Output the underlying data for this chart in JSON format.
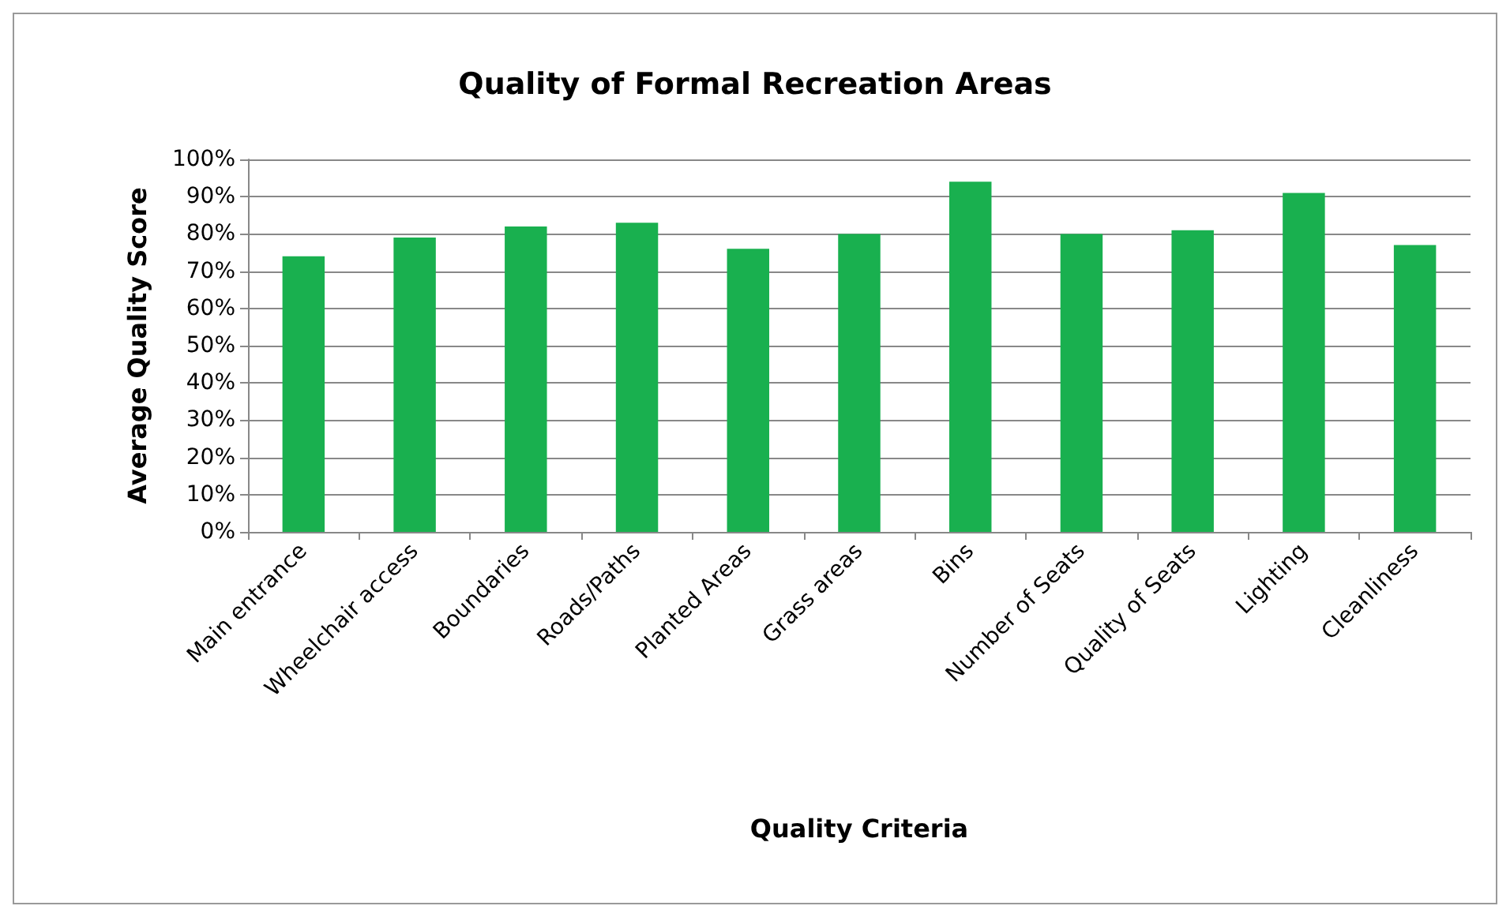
{
  "chart_data": {
    "type": "bar",
    "title": "Quality of Formal Recreation Areas",
    "xlabel": "Quality Criteria",
    "ylabel": "Average Quality Score",
    "categories": [
      "Main entrance",
      "Wheelchair access",
      "Boundaries",
      "Roads/Paths",
      "Planted Areas",
      "Grass areas",
      "Bins",
      "Number of Seats",
      "Quality of Seats",
      "Lighting",
      "Cleanliness"
    ],
    "values": [
      74,
      79,
      82,
      83,
      76,
      80,
      94,
      80,
      81,
      91,
      77
    ],
    "color": "#19b04f",
    "ylim": [
      0,
      100
    ],
    "yticks": [
      {
        "value": 0,
        "label": "0%"
      },
      {
        "value": 10,
        "label": "10%"
      },
      {
        "value": 20,
        "label": "20%"
      },
      {
        "value": 30,
        "label": "30%"
      },
      {
        "value": 40,
        "label": "40%"
      },
      {
        "value": 50,
        "label": "50%"
      },
      {
        "value": 60,
        "label": "60%"
      },
      {
        "value": 70,
        "label": "70%"
      },
      {
        "value": 80,
        "label": "80%"
      },
      {
        "value": 90,
        "label": "90%"
      },
      {
        "value": 100,
        "label": "100%"
      }
    ],
    "grid": "y"
  }
}
